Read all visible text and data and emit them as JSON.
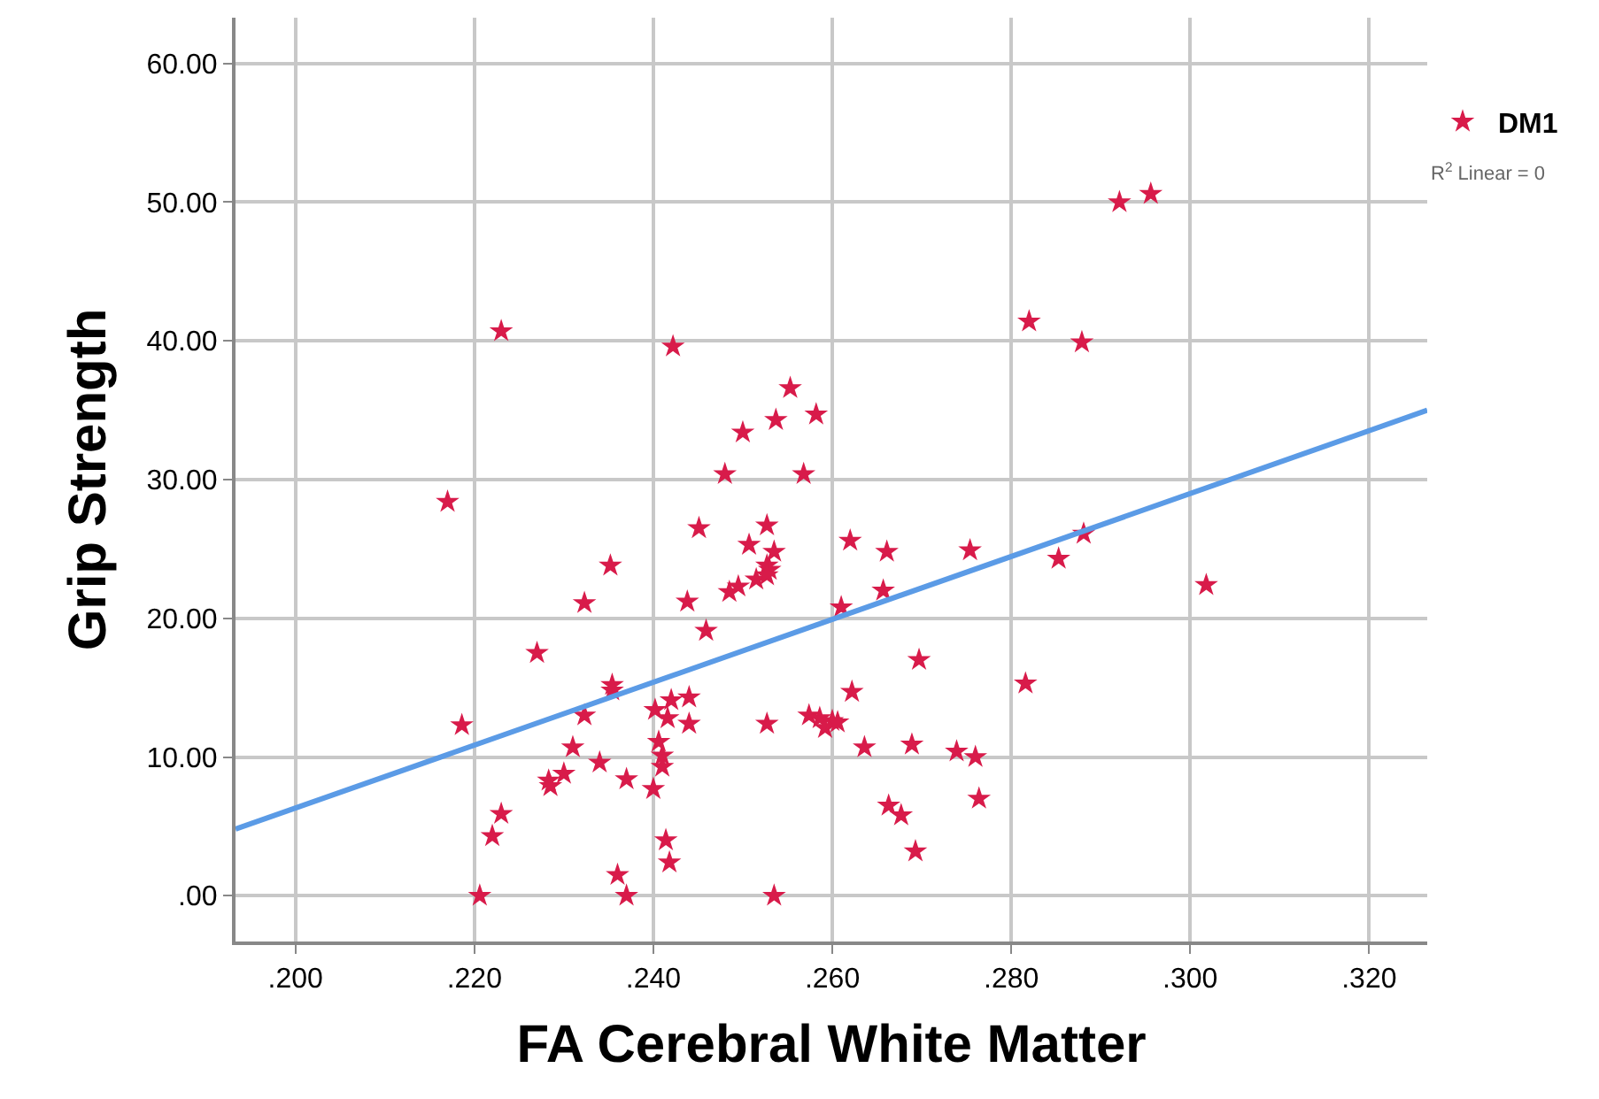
{
  "chart_data": {
    "type": "scatter",
    "xlabel": "FA Cerebral White Matter",
    "ylabel": "Grip Strength",
    "annotations": [
      "R$^{2}$ Linear = 0"
    ],
    "xlim": [
      0.1933,
      0.3265
    ],
    "ylim": [
      -3.3,
      63.3
    ],
    "xticks": [
      {
        "value": 0.2,
        "label": ".200"
      },
      {
        "value": 0.22,
        "label": ".220"
      },
      {
        "value": 0.24,
        "label": ".240"
      },
      {
        "value": 0.26,
        "label": ".260"
      },
      {
        "value": 0.28,
        "label": ".280"
      },
      {
        "value": 0.3,
        "label": ".300"
      },
      {
        "value": 0.32,
        "label": ".320"
      }
    ],
    "yticks": [
      {
        "value": 0,
        "label": ".00"
      },
      {
        "value": 10,
        "label": "10.00"
      },
      {
        "value": 20,
        "label": "20.00"
      },
      {
        "value": 30,
        "label": "30.00"
      },
      {
        "value": 40,
        "label": "40.00"
      },
      {
        "value": 50,
        "label": "50.00"
      },
      {
        "value": 60,
        "label": "60.00"
      }
    ],
    "grid": true,
    "legend": "top right",
    "marker": "star",
    "series": [
      {
        "name": "DM1",
        "color": "#d81b4a",
        "x": [
          0.217,
          0.2186,
          0.223,
          0.2206,
          0.222,
          0.223,
          0.227,
          0.2283,
          0.2285,
          0.23,
          0.231,
          0.2323,
          0.2323,
          0.234,
          0.2352,
          0.2354,
          0.2354,
          0.236,
          0.237,
          0.237,
          0.24,
          0.2402,
          0.2406,
          0.241,
          0.241,
          0.2414,
          0.2418,
          0.2416,
          0.242,
          0.2422,
          0.2438,
          0.244,
          0.244,
          0.2451,
          0.2459,
          0.248,
          0.2485,
          0.2495,
          0.25,
          0.2507,
          0.2515,
          0.2527,
          0.2527,
          0.253,
          0.2527,
          0.2527,
          0.2535,
          0.2535,
          0.2537,
          0.2553,
          0.2568,
          0.2574,
          0.2582,
          0.2586,
          0.2592,
          0.26,
          0.2606,
          0.261,
          0.262,
          0.2622,
          0.2636,
          0.2657,
          0.2661,
          0.2663,
          0.2677,
          0.2689,
          0.2693,
          0.2697,
          0.2739,
          0.2754,
          0.276,
          0.2764,
          0.2816,
          0.2853,
          0.2881,
          0.3018,
          0.282,
          0.2879,
          0.2921,
          0.2956
        ],
        "values": [
          28.4,
          12.3,
          40.7,
          0,
          4.3,
          5.9,
          17.5,
          8.3,
          7.9,
          8.8,
          10.7,
          13.0,
          21.1,
          9.6,
          23.8,
          15.2,
          14.8,
          1.5,
          0,
          8.4,
          7.7,
          13.4,
          11.1,
          10.1,
          9.3,
          4.0,
          2.4,
          12.8,
          14.1,
          39.6,
          21.2,
          14.3,
          12.4,
          26.5,
          19.1,
          30.4,
          21.9,
          22.3,
          33.4,
          25.3,
          22.8,
          26.7,
          23.8,
          23.5,
          23.1,
          12.4,
          24.8,
          0,
          34.3,
          36.6,
          30.4,
          13.0,
          34.7,
          12.8,
          12.1,
          12.6,
          12.5,
          20.8,
          25.6,
          14.7,
          10.7,
          22.0,
          24.8,
          6.5,
          5.8,
          10.9,
          3.2,
          17.0,
          10.4,
          24.9,
          10.0,
          7.0,
          15.3,
          24.3,
          26.1,
          22.4,
          41.4,
          39.9,
          50.0,
          50.6
        ]
      },
      {
        "type": "line",
        "marker": "none",
        "color": "#5b9be6",
        "x": [
          0.1933,
          0.3265
        ],
        "values": [
          4.8,
          35.0
        ]
      }
    ]
  }
}
